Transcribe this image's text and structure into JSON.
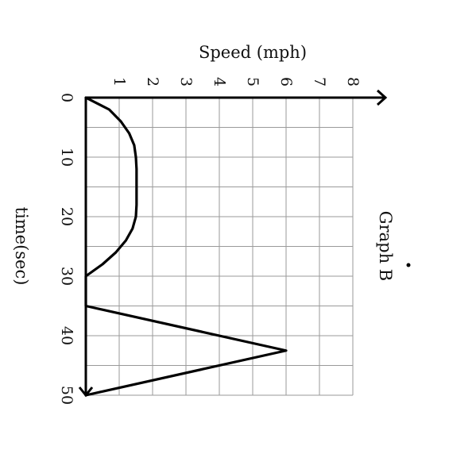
{
  "chart_data": {
    "type": "line",
    "title": "Graph B",
    "xlabel": "time(sec)",
    "ylabel": "Speed (mph)",
    "xlim": [
      0,
      50
    ],
    "ylim": [
      0,
      8
    ],
    "x_ticks": [
      "0",
      "10",
      "20",
      "30",
      "40",
      "50"
    ],
    "y_ticks": [
      "1",
      "2",
      "3",
      "4",
      "5",
      "6",
      "7",
      "8"
    ],
    "grid": true,
    "x_minor_step": 5,
    "series": [
      {
        "x": [
          0,
          2,
          4,
          6,
          8,
          10,
          12,
          14,
          16,
          18,
          20,
          22,
          24,
          26,
          28,
          30,
          35,
          42.5,
          50
        ],
        "values": [
          0,
          0.7,
          1.05,
          1.3,
          1.45,
          1.5,
          1.52,
          1.52,
          1.52,
          1.52,
          1.5,
          1.4,
          1.2,
          0.9,
          0.5,
          0,
          0,
          6,
          0
        ]
      }
    ],
    "color": "#000000"
  }
}
